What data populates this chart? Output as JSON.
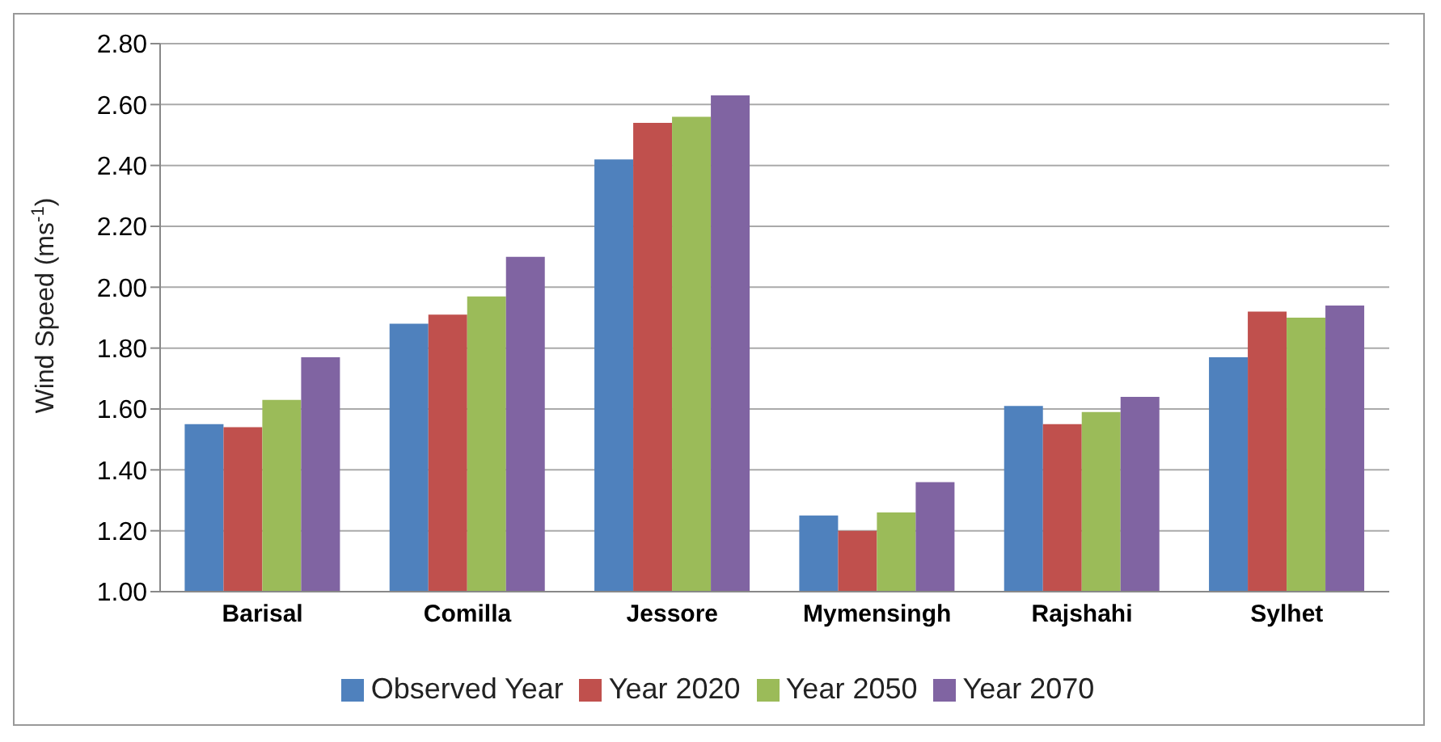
{
  "chart_data": {
    "type": "bar",
    "ylabel": "Wind Speed (ms$^{-1}$)",
    "categories": [
      "Barisal",
      "Comilla",
      "Jessore",
      "Mymensingh",
      "Rajshahi",
      "Sylhet"
    ],
    "series": [
      {
        "name": "Observed Year",
        "color": "#4f81bd",
        "values": [
          1.55,
          1.88,
          2.42,
          1.25,
          1.61,
          1.77
        ]
      },
      {
        "name": "Year 2020",
        "color": "#c0504d",
        "values": [
          1.54,
          1.91,
          2.54,
          1.2,
          1.55,
          1.92
        ]
      },
      {
        "name": "Year 2050",
        "color": "#9bbb59",
        "values": [
          1.63,
          1.97,
          2.56,
          1.26,
          1.59,
          1.9
        ]
      },
      {
        "name": "Year 2070",
        "color": "#8064a2",
        "values": [
          1.77,
          2.1,
          2.63,
          1.36,
          1.64,
          1.94
        ]
      }
    ],
    "ylim": [
      1,
      2.8
    ],
    "yticks": [
      {
        "value": 1,
        "label": "1.00"
      },
      {
        "value": 1.2,
        "label": "1.20"
      },
      {
        "value": 1.4,
        "label": "1.40"
      },
      {
        "value": 1.6,
        "label": "1.60"
      },
      {
        "value": 1.8,
        "label": "1.80"
      },
      {
        "value": 2,
        "label": "2.00"
      },
      {
        "value": 2.2,
        "label": "2.20"
      },
      {
        "value": 2.4,
        "label": "2.40"
      },
      {
        "value": 2.6,
        "label": "2.60"
      },
      {
        "value": 2.8,
        "label": "2.80"
      }
    ],
    "grid": "y",
    "legend": "bottom"
  }
}
